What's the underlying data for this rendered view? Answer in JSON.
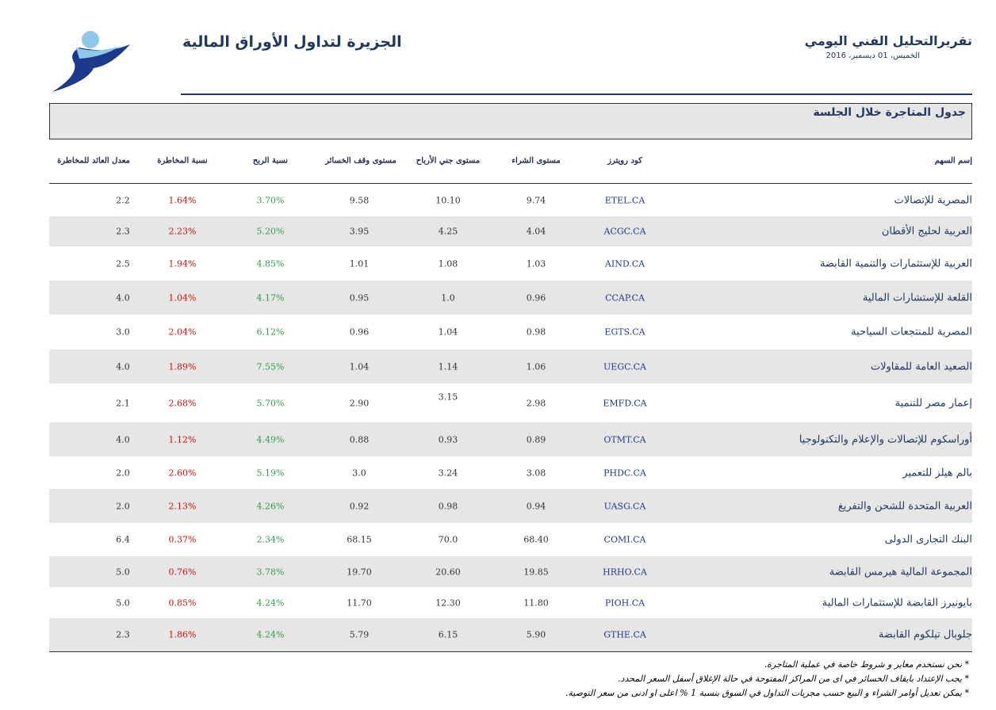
{
  "header": {
    "company": "الجزيرة لتداول الأوراق المالية",
    "report_title": "تقريرالتحليل الفني اليومي",
    "date": "الخميس، 01 ديسمبر، 2016"
  },
  "section_title": "جدول المتاجرة خلال الجلسة",
  "table": {
    "columns": [
      "إسم السهم",
      "كود رويترز",
      "مستوى الشراء",
      "مستوى جني الأرباح",
      "مستوى وقف الخسائر",
      "نسبة الربح",
      "نسبة المخاطرة",
      "معدل العائد للمخاطرة"
    ],
    "rows": [
      [
        "المصرية للإتصالات",
        "ETEL.CA",
        "9.74",
        "10.10",
        "9.58",
        "3.70%",
        "1.64%",
        "2.2"
      ],
      [
        "العربية لحليج الأقطان",
        "ACGC.CA",
        "4.04",
        "4.25",
        "3.95",
        "5.20%",
        "2.23%",
        "2.3"
      ],
      [
        "العربية للإستثمارات والتنمية القابضة",
        "AIND.CA",
        "1.03",
        "1.08",
        "1.01",
        "4.85%",
        "1.94%",
        "2.5"
      ],
      [
        "القلعة للإستشارات المالية",
        "CCAP.CA",
        "0.96",
        "1.0",
        "0.95",
        "4.17%",
        "1.04%",
        "4.0"
      ],
      [
        "المصرية للمنتجعات السياحية",
        "EGTS.CA",
        "0.98",
        "1.04",
        "0.96",
        "6.12%",
        "2.04%",
        "3.0"
      ],
      [
        "الصعيد العامة للمقاولات",
        "UEGC.CA",
        "1.06",
        "1.14",
        "1.04",
        "7.55%",
        "1.89%",
        "4.0"
      ],
      [
        "إعمار مصر للتنمية",
        "EMFD.CA",
        "2.98",
        "3.15",
        "2.90",
        "5.70%",
        "2.68%",
        "2.1"
      ],
      [
        "أوراسكوم للإتصالات والإعلام والتكنولوجيا",
        "OTMT.CA",
        "0.89",
        "0.93",
        "0.88",
        "4.49%",
        "1.12%",
        "4.0"
      ],
      [
        "بالم هيلز للتعمير",
        "PHDC.CA",
        "3.08",
        "3.24",
        "3.0",
        "5.19%",
        "2.60%",
        "2.0"
      ],
      [
        "العربية المتحدة للشحن والتفريغ",
        "UASG.CA",
        "0.94",
        "0.98",
        "0.92",
        "4.26%",
        "2.13%",
        "2.0"
      ],
      [
        "البنك التجارى الدولى",
        "COMI.CA",
        "68.40",
        "70.0",
        "68.15",
        "2.34%",
        "0.37%",
        "6.4"
      ],
      [
        "المجموعة المالية  هيرمس القابضة",
        "HRHO.CA",
        "19.85",
        "20.60",
        "19.70",
        "3.78%",
        "0.76%",
        "5.0"
      ],
      [
        "بايونيرز القابضة للإستثمارات المالية",
        "PIOH.CA",
        "11.80",
        "12.30",
        "11.70",
        "4.24%",
        "0.85%",
        "5.0"
      ],
      [
        "جلوبال تيلكوم القابضة",
        "GTHE.CA",
        "5.90",
        "6.15",
        "5.79",
        "4.24%",
        "1.86%",
        "2.3"
      ]
    ]
  },
  "footnotes": [
    "* نحن نستخدم معاير و شروط خاصة في عملية المتاجرة.",
    "* يجب الإعتداد بايقاف الخسائر في اى من المراكز المفتوحة في حالة الإغلاق أسفل السعر المحدد.",
    "* يمكن تعديل أوامر الشراء و البيع حسب مجريات التداول في السوق بنسبة 1 % اعلى او ادنى من سعر التوصية."
  ]
}
